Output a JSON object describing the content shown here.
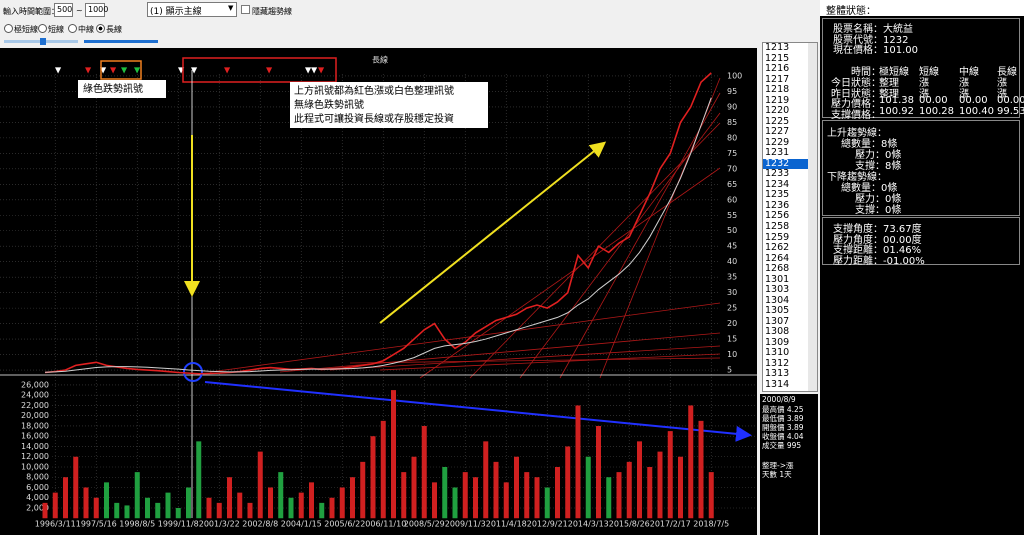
{
  "toolbar": {
    "range_label": "輸入時間範圍：",
    "range_start": "500",
    "range_sep": "~",
    "range_end": "1000",
    "line_select": "(1) 顯示主線",
    "hide_trend": "隱藏趨勢線",
    "radios": [
      "極短線",
      "短線",
      "中線",
      "長線"
    ],
    "radio_selected": 3
  },
  "chart_data": [
    {
      "type": "line",
      "title": "長線",
      "series": [
        {
          "color": "#e02020",
          "values": [
            4.2,
            4.5,
            5,
            6.5,
            7,
            7.5,
            6.5,
            6,
            5.5,
            5.2,
            5,
            4.8,
            4.5,
            4.2,
            4,
            3.8,
            3.9,
            4,
            4.2,
            4.5,
            5,
            5.5,
            5.8,
            5.5,
            5.2,
            5.3,
            5.5,
            5.2,
            5.4,
            5.6,
            6,
            6.5,
            7,
            8,
            10,
            12,
            15,
            18,
            20,
            15,
            12,
            14,
            17,
            19,
            21,
            22,
            23,
            25,
            26,
            25,
            27,
            30,
            42,
            38,
            45,
            43,
            46,
            48,
            55,
            62,
            70,
            75,
            85,
            90,
            98,
            101
          ]
        },
        {
          "color": "#cfcfcf",
          "values": [
            4.3,
            4.4,
            4.6,
            5,
            5.4,
            5.8,
            6,
            6.1,
            6.1,
            6,
            5.9,
            5.7,
            5.5,
            5.3,
            5,
            4.8,
            4.6,
            4.5,
            4.4,
            4.4,
            4.5,
            4.7,
            4.9,
            5,
            5.1,
            5.2,
            5.3,
            5.3,
            5.3,
            5.4,
            5.5,
            5.7,
            6,
            6.5,
            7.2,
            8,
            9,
            10.5,
            12,
            12.8,
            13.2,
            13.6,
            14.2,
            15,
            16,
            17,
            18,
            19,
            20,
            21,
            22,
            23.5,
            26,
            28,
            31,
            33.5,
            36,
            39,
            43,
            48,
            54,
            60,
            67,
            75,
            84,
            93
          ]
        }
      ],
      "ylim": [
        0,
        105
      ],
      "yticks": [
        5,
        10,
        15,
        20,
        25,
        30,
        35,
        40,
        45,
        50,
        55,
        60,
        65,
        70,
        75,
        80,
        85,
        90,
        95,
        100
      ],
      "grid": true,
      "annotations": [
        "綠色跌勢訊號",
        "上方訊號都為紅色漲或白色整理訊號",
        "無綠色跌勢訊號",
        "此程式可讓投資長線或存股穩定投資"
      ]
    },
    {
      "type": "bar",
      "categories": [
        null,
        "1996/3/11",
        null,
        null,
        null,
        "1997/5/16",
        null,
        null,
        null,
        "1998/8/5",
        null,
        null,
        null,
        "1999/11/8",
        null,
        null,
        null,
        "2001/3/22",
        null,
        null,
        null,
        "2002/8/8",
        null,
        null,
        null,
        "2004/1/15",
        null,
        null,
        null,
        "2005/6/2",
        null,
        null,
        null,
        "2006/11/10",
        null,
        null,
        null,
        "2008/5/29",
        null,
        null,
        null,
        "2009/11/3",
        null,
        null,
        null,
        "2011/4/18",
        null,
        null,
        null,
        "2012/9/21",
        null,
        null,
        null,
        "2014/3/13",
        null,
        null,
        null,
        "2015/8/26",
        null,
        null,
        null,
        "2017/2/17",
        null,
        null,
        null,
        "2018/7/5"
      ],
      "values": [
        3000,
        5000,
        8000,
        12000,
        6000,
        4000,
        7000,
        3000,
        2500,
        9000,
        4000,
        3000,
        5000,
        2000,
        6000,
        15000,
        4000,
        3000,
        8000,
        5000,
        3000,
        13000,
        6000,
        9000,
        4000,
        5000,
        7000,
        3000,
        4000,
        6000,
        8000,
        11000,
        16000,
        19000,
        25000,
        9000,
        12000,
        18000,
        7000,
        10000,
        6000,
        9000,
        8000,
        15000,
        11000,
        7000,
        12000,
        9000,
        8000,
        6000,
        10000,
        14000,
        22000,
        12000,
        18000,
        8000,
        9000,
        11000,
        15000,
        10000,
        13000,
        17000,
        12000,
        22000,
        19000,
        9000
      ],
      "up_color": "#d02020",
      "down_color": "#20a040",
      "ylim": [
        0,
        27000
      ],
      "yticks": [
        {
          "value": 2000,
          "label": "2,000"
        },
        {
          "value": 4000,
          "label": "4,000"
        },
        {
          "value": 6000,
          "label": "6,000"
        },
        {
          "value": 8000,
          "label": "8,000"
        },
        {
          "value": 10000,
          "label": "10,000"
        },
        {
          "value": 12000,
          "label": "12,000"
        },
        {
          "value": 14000,
          "label": "14,000"
        },
        {
          "value": 16000,
          "label": "16,000"
        },
        {
          "value": 18000,
          "label": "18,000"
        },
        {
          "value": 20000,
          "label": "20,000"
        },
        {
          "value": 22000,
          "label": "22,000"
        },
        {
          "value": 24000,
          "label": "24,000"
        },
        {
          "value": 26000,
          "label": "26,000"
        }
      ],
      "grid": true
    }
  ],
  "stock_list": {
    "items": [
      "1213",
      "1215",
      "1216",
      "1217",
      "1218",
      "1219",
      "1220",
      "1225",
      "1227",
      "1229",
      "1231",
      "1232",
      "1233",
      "1234",
      "1235",
      "1236",
      "1256",
      "1258",
      "1259",
      "1262",
      "1264",
      "1268",
      "1301",
      "1303",
      "1304",
      "1305",
      "1307",
      "1308",
      "1309",
      "1310",
      "1312",
      "1313",
      "1314"
    ],
    "selected_index": 11
  },
  "detail": {
    "lines": [
      "2000/8/9",
      "最高價 4.25",
      "最低價 3.89",
      "開盤價 3.89",
      "收盤價 4.04",
      "成交量 995"
    ],
    "status": [
      "整理->漲",
      "天數 1天"
    ]
  },
  "status_panel": {
    "title": "整體狀態：",
    "info": [
      "股票名稱：大統益",
      "股票代號：1232",
      "現在價格：101.00"
    ],
    "table": {
      "headers": [
        "時間：",
        "極短線",
        "短線",
        "中線",
        "長線"
      ],
      "rows": [
        [
          "今日狀態：",
          "整理",
          "漲",
          "漲",
          "漲"
        ],
        [
          "昨日狀態：",
          "整理",
          "漲",
          "漲",
          "漲"
        ],
        [
          "壓力價格：",
          "101.38",
          "00.00",
          "00.00",
          "00.00"
        ],
        [
          "支撐價格：",
          "100.92",
          "100.28",
          "100.40",
          "99.53"
        ]
      ]
    },
    "trend": [
      [
        "上升趨勢線：",
        0
      ],
      [
        "總數量：8條",
        1
      ],
      [
        "壓力：0條",
        2
      ],
      [
        "支撐：8條",
        2
      ],
      [
        "下降趨勢線：",
        0
      ],
      [
        "總數量：0條",
        1
      ],
      [
        "壓力：0條",
        2
      ],
      [
        "支撐：0條",
        2
      ]
    ],
    "angles": [
      "支撐角度：73.67度",
      "壓力角度：00.00度",
      "支撐距離：01.46%",
      "壓力距離：-01.00%"
    ]
  }
}
